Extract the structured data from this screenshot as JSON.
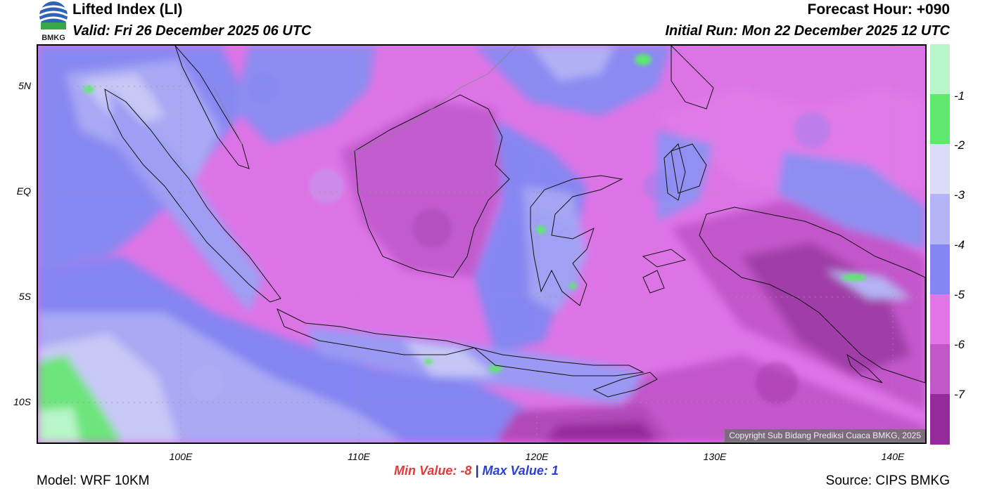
{
  "header": {
    "title": "Lifted Index (LI)",
    "valid": "Valid: Fri 26 December 2025 06 UTC",
    "forecast_hour": "Forecast Hour: +090",
    "initial_run": "Initial Run: Mon 22 December 2025 12 UTC"
  },
  "logo": {
    "text": "BMKG",
    "icon": "bmkg-logo-icon"
  },
  "map": {
    "lat_labels": [
      "5N",
      "EQ",
      "5S",
      "10S"
    ],
    "lon_labels": [
      "100E",
      "110E",
      "120E",
      "130E",
      "140E"
    ],
    "copyright": "Copyright Sub Bidang Prediksi Cuaca BMKG, 2025"
  },
  "colorbar": {
    "labels": [
      "-1",
      "-2",
      "-3",
      "-4",
      "-5",
      "-6",
      "-7"
    ],
    "colors": [
      "#b8f5c8",
      "#5ee86e",
      "#dcdcf8",
      "#b4b4f6",
      "#8484f2",
      "#e276e8",
      "#c257ca",
      "#952a9b"
    ]
  },
  "stats": {
    "min_label": "Min Value:",
    "min_value": "-8",
    "separator": "|",
    "max_label": "Max Value:",
    "max_value": "1"
  },
  "footer": {
    "model": "Model: WRF 10KM",
    "source": "Source: CIPS BMKG"
  }
}
